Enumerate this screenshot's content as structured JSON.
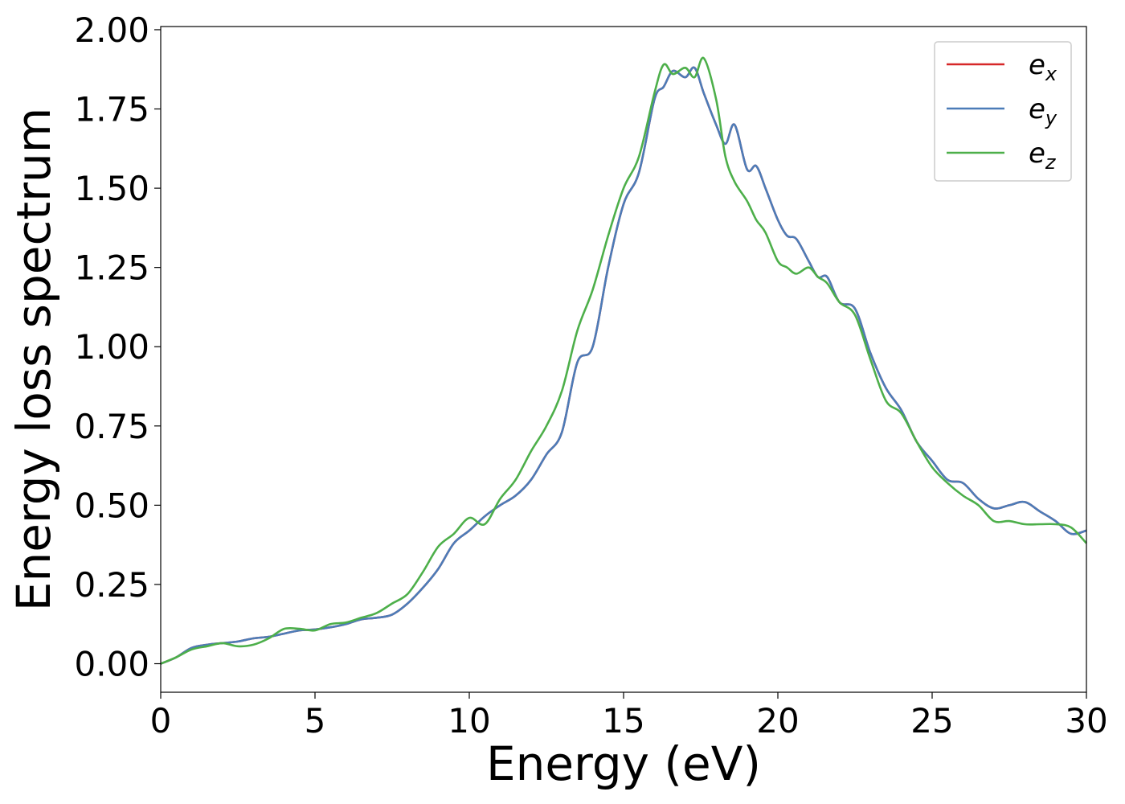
{
  "chart_data": {
    "type": "line",
    "xlabel": "Energy (eV)",
    "ylabel": "Energy loss spectrum",
    "xlim": [
      0,
      30
    ],
    "ylim": [
      -0.09,
      2.01
    ],
    "xticks": [
      0,
      5,
      10,
      15,
      20,
      25,
      30
    ],
    "xtick_labels": [
      "0",
      "5",
      "10",
      "15",
      "20",
      "25",
      "30"
    ],
    "yticks": [
      0,
      0.25,
      0.5,
      0.75,
      1.0,
      1.25,
      1.5,
      1.75,
      2.0
    ],
    "ytick_labels": [
      "0.00",
      "0.25",
      "0.50",
      "0.75",
      "1.00",
      "1.25",
      "1.50",
      "1.75",
      "2.00"
    ],
    "grid": false,
    "legend_position": "top-right",
    "series": [
      {
        "name": "e_x",
        "base": "e",
        "sub": "x",
        "color": "#d62728",
        "x": [
          0,
          0.5,
          1,
          1.5,
          2,
          2.5,
          3,
          3.5,
          4,
          4.5,
          5,
          5.5,
          6,
          6.5,
          7,
          7.5,
          8,
          8.5,
          9,
          9.5,
          10,
          10.5,
          11,
          11.5,
          12,
          12.5,
          13,
          13.5,
          14,
          14.5,
          15,
          15.5,
          16,
          16.3,
          16.6,
          17,
          17.3,
          17.6,
          18,
          18.3,
          18.6,
          19,
          19.3,
          19.6,
          20,
          20.3,
          20.6,
          21,
          21.3,
          21.6,
          22,
          22.5,
          23,
          23.5,
          24,
          24.5,
          25,
          25.5,
          26,
          26.5,
          27,
          27.5,
          28,
          28.5,
          29,
          29.5,
          30
        ],
        "y": [
          0.0,
          0.02,
          0.05,
          0.06,
          0.065,
          0.07,
          0.08,
          0.085,
          0.095,
          0.105,
          0.108,
          0.115,
          0.125,
          0.14,
          0.145,
          0.155,
          0.19,
          0.24,
          0.3,
          0.38,
          0.42,
          0.465,
          0.5,
          0.53,
          0.58,
          0.66,
          0.73,
          0.95,
          1.0,
          1.25,
          1.45,
          1.55,
          1.78,
          1.82,
          1.87,
          1.85,
          1.88,
          1.8,
          1.7,
          1.64,
          1.7,
          1.56,
          1.57,
          1.5,
          1.4,
          1.35,
          1.34,
          1.27,
          1.22,
          1.22,
          1.14,
          1.12,
          0.98,
          0.87,
          0.8,
          0.7,
          0.64,
          0.58,
          0.57,
          0.52,
          0.49,
          0.5,
          0.51,
          0.48,
          0.45,
          0.41,
          0.42
        ]
      },
      {
        "name": "e_y",
        "base": "e",
        "sub": "y",
        "color": "#4c7cb8",
        "x": [
          0,
          0.5,
          1,
          1.5,
          2,
          2.5,
          3,
          3.5,
          4,
          4.5,
          5,
          5.5,
          6,
          6.5,
          7,
          7.5,
          8,
          8.5,
          9,
          9.5,
          10,
          10.5,
          11,
          11.5,
          12,
          12.5,
          13,
          13.5,
          14,
          14.5,
          15,
          15.5,
          16,
          16.3,
          16.6,
          17,
          17.3,
          17.6,
          18,
          18.3,
          18.6,
          19,
          19.3,
          19.6,
          20,
          20.3,
          20.6,
          21,
          21.3,
          21.6,
          22,
          22.5,
          23,
          23.5,
          24,
          24.5,
          25,
          25.5,
          26,
          26.5,
          27,
          27.5,
          28,
          28.5,
          29,
          29.5,
          30
        ],
        "y": [
          0.0,
          0.02,
          0.05,
          0.06,
          0.065,
          0.07,
          0.08,
          0.085,
          0.095,
          0.105,
          0.108,
          0.115,
          0.125,
          0.14,
          0.145,
          0.155,
          0.19,
          0.24,
          0.3,
          0.38,
          0.42,
          0.465,
          0.5,
          0.53,
          0.58,
          0.66,
          0.73,
          0.95,
          1.0,
          1.25,
          1.45,
          1.55,
          1.78,
          1.82,
          1.87,
          1.85,
          1.88,
          1.8,
          1.7,
          1.64,
          1.7,
          1.56,
          1.57,
          1.5,
          1.4,
          1.35,
          1.34,
          1.27,
          1.22,
          1.22,
          1.14,
          1.12,
          0.98,
          0.87,
          0.8,
          0.7,
          0.64,
          0.58,
          0.57,
          0.52,
          0.49,
          0.5,
          0.51,
          0.48,
          0.45,
          0.41,
          0.42
        ]
      },
      {
        "name": "e_z",
        "base": "e",
        "sub": "z",
        "color": "#4daf4a",
        "x": [
          0,
          0.5,
          1,
          1.5,
          2,
          2.5,
          3,
          3.5,
          4,
          4.5,
          5,
          5.5,
          6,
          6.5,
          7,
          7.5,
          8,
          8.5,
          9,
          9.5,
          10,
          10.5,
          11,
          11.5,
          12,
          12.5,
          13,
          13.5,
          14,
          14.5,
          15,
          15.5,
          16,
          16.3,
          16.6,
          17,
          17.3,
          17.6,
          18,
          18.3,
          18.6,
          19,
          19.3,
          19.6,
          20,
          20.3,
          20.6,
          21,
          21.3,
          21.6,
          22,
          22.5,
          23,
          23.5,
          24,
          24.5,
          25,
          25.5,
          26,
          26.5,
          27,
          27.5,
          28,
          28.5,
          29,
          29.5,
          30
        ],
        "y": [
          0.0,
          0.02,
          0.045,
          0.055,
          0.065,
          0.055,
          0.06,
          0.08,
          0.11,
          0.11,
          0.105,
          0.125,
          0.13,
          0.145,
          0.16,
          0.19,
          0.22,
          0.29,
          0.37,
          0.41,
          0.46,
          0.44,
          0.52,
          0.58,
          0.67,
          0.75,
          0.86,
          1.05,
          1.18,
          1.35,
          1.5,
          1.6,
          1.8,
          1.89,
          1.86,
          1.88,
          1.85,
          1.91,
          1.78,
          1.6,
          1.52,
          1.46,
          1.4,
          1.36,
          1.27,
          1.25,
          1.23,
          1.25,
          1.22,
          1.2,
          1.14,
          1.1,
          0.96,
          0.83,
          0.79,
          0.7,
          0.62,
          0.57,
          0.53,
          0.5,
          0.45,
          0.45,
          0.44,
          0.44,
          0.44,
          0.43,
          0.38
        ]
      }
    ]
  }
}
